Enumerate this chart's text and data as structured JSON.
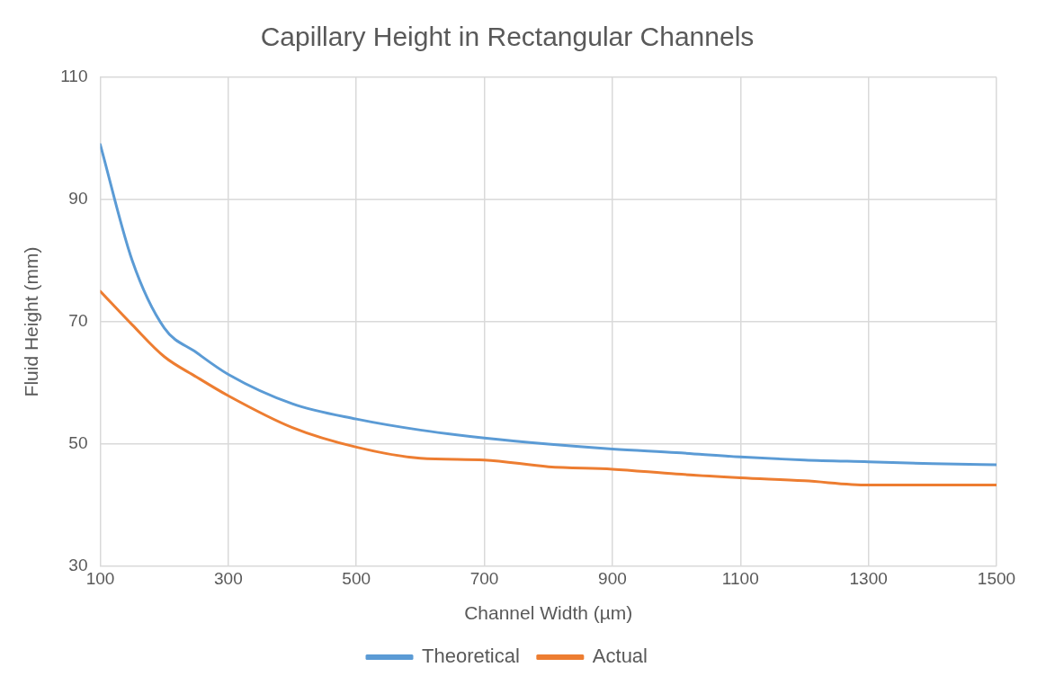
{
  "chart_data": {
    "type": "line",
    "title": "Capillary Height in Rectangular Channels",
    "xlabel": "Channel Width (µm)",
    "ylabel": "Fluid Height (mm)",
    "x": [
      100,
      150,
      200,
      250,
      300,
      400,
      500,
      600,
      700,
      800,
      900,
      1000,
      1100,
      1200,
      1300,
      1400,
      1500
    ],
    "series": [
      {
        "name": "Theoretical",
        "color": "#5b9bd5",
        "values": [
          99,
          80,
          69,
          65,
          61.4,
          56.6,
          54.1,
          52.3,
          51,
          50,
          49.2,
          48.6,
          47.9,
          47.4,
          47.1,
          46.8,
          46.6
        ]
      },
      {
        "name": "Actual",
        "color": "#ed7d31",
        "values": [
          75,
          69.5,
          64.3,
          61,
          57.9,
          52.7,
          49.5,
          47.7,
          47.4,
          46.3,
          45.9,
          45.1,
          44.5,
          44,
          43.3,
          43.3,
          43.3
        ]
      }
    ],
    "xlim": [
      100,
      1500
    ],
    "xticks": [
      100,
      300,
      500,
      700,
      900,
      1100,
      1300,
      1500
    ],
    "ylim": [
      30,
      110
    ],
    "yticks": [
      30,
      50,
      70,
      90,
      110
    ],
    "grid": true,
    "legend": "bottom",
    "marker": "none",
    "line_style": "solid"
  }
}
